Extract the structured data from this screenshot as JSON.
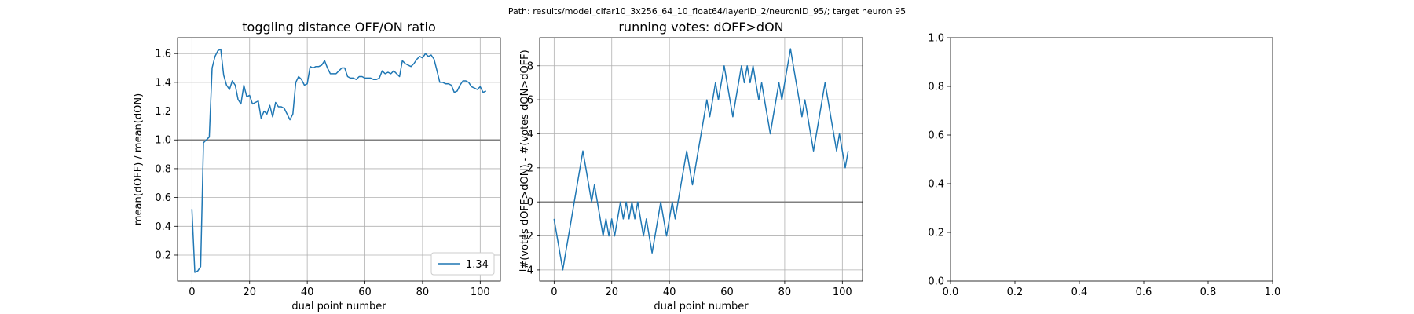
{
  "suptitle": "Path: results/model_cifar10_3x256_64_10_float64/layerID_2/neuronID_95/; target neuron 95",
  "chart_data": [
    {
      "type": "line",
      "title": "toggling distance OFF/ON ratio",
      "xlabel": "dual point number",
      "ylabel": "mean(dOFF) / mean(dON)",
      "xlim": [
        -5,
        107
      ],
      "ylim": [
        0.02,
        1.71
      ],
      "xticks": [
        0,
        20,
        40,
        60,
        80,
        100
      ],
      "yticks": [
        0.2,
        0.4,
        0.6,
        0.8,
        1.0,
        1.2,
        1.4,
        1.6
      ],
      "grid": true,
      "hline": 1.0,
      "legend": {
        "loc": "lower right",
        "entries": [
          "1.34"
        ]
      },
      "series": [
        {
          "name": "1.34",
          "color": "#1f77b4",
          "x": [
            0,
            1,
            2,
            3,
            4,
            5,
            6,
            7,
            8,
            9,
            10,
            11,
            12,
            13,
            14,
            15,
            16,
            17,
            18,
            19,
            20,
            21,
            22,
            23,
            24,
            25,
            26,
            27,
            28,
            29,
            30,
            31,
            32,
            33,
            34,
            35,
            36,
            37,
            38,
            39,
            40,
            41,
            42,
            43,
            44,
            45,
            46,
            47,
            48,
            49,
            50,
            51,
            52,
            53,
            54,
            55,
            56,
            57,
            58,
            59,
            60,
            61,
            62,
            63,
            64,
            65,
            66,
            67,
            68,
            69,
            70,
            71,
            72,
            73,
            74,
            75,
            76,
            77,
            78,
            79,
            80,
            81,
            82,
            83,
            84,
            85,
            86,
            87,
            88,
            89,
            90,
            91,
            92,
            93,
            94,
            95,
            96,
            97,
            98,
            99,
            100,
            101,
            102
          ],
          "y": [
            0.52,
            0.08,
            0.09,
            0.12,
            0.98,
            1.0,
            1.02,
            1.5,
            1.58,
            1.62,
            1.63,
            1.45,
            1.38,
            1.35,
            1.41,
            1.38,
            1.28,
            1.25,
            1.38,
            1.3,
            1.31,
            1.25,
            1.26,
            1.27,
            1.15,
            1.2,
            1.18,
            1.24,
            1.16,
            1.26,
            1.23,
            1.23,
            1.22,
            1.18,
            1.14,
            1.18,
            1.4,
            1.44,
            1.42,
            1.38,
            1.39,
            1.51,
            1.5,
            1.51,
            1.51,
            1.52,
            1.55,
            1.5,
            1.46,
            1.46,
            1.46,
            1.48,
            1.5,
            1.5,
            1.44,
            1.43,
            1.43,
            1.42,
            1.44,
            1.44,
            1.43,
            1.43,
            1.43,
            1.42,
            1.42,
            1.43,
            1.48,
            1.46,
            1.47,
            1.46,
            1.48,
            1.46,
            1.44,
            1.55,
            1.53,
            1.52,
            1.51,
            1.53,
            1.56,
            1.58,
            1.57,
            1.6,
            1.58,
            1.59,
            1.56,
            1.48,
            1.4,
            1.4,
            1.39,
            1.39,
            1.38,
            1.33,
            1.34,
            1.38,
            1.41,
            1.41,
            1.4,
            1.37,
            1.36,
            1.35,
            1.37,
            1.33,
            1.34
          ]
        }
      ]
    },
    {
      "type": "line",
      "title": "running votes: dOFF>dON",
      "xlabel": "dual point number",
      "ylabel": "#(votes dOFF>dON) - #(votes dON>dOFF)",
      "xlim": [
        -5,
        107
      ],
      "ylim": [
        -4.65,
        9.65
      ],
      "xticks": [
        0,
        20,
        40,
        60,
        80,
        100
      ],
      "yticks": [
        -4,
        -2,
        0,
        2,
        4,
        6,
        8
      ],
      "grid": true,
      "hline": 0,
      "series": [
        {
          "color": "#1f77b4",
          "x": [
            0,
            1,
            2,
            3,
            4,
            5,
            6,
            7,
            8,
            9,
            10,
            11,
            12,
            13,
            14,
            15,
            16,
            17,
            18,
            19,
            20,
            21,
            22,
            23,
            24,
            25,
            26,
            27,
            28,
            29,
            30,
            31,
            32,
            33,
            34,
            35,
            36,
            37,
            38,
            39,
            40,
            41,
            42,
            43,
            44,
            45,
            46,
            47,
            48,
            49,
            50,
            51,
            52,
            53,
            54,
            55,
            56,
            57,
            58,
            59,
            60,
            61,
            62,
            63,
            64,
            65,
            66,
            67,
            68,
            69,
            70,
            71,
            72,
            73,
            74,
            75,
            76,
            77,
            78,
            79,
            80,
            81,
            82,
            83,
            84,
            85,
            86,
            87,
            88,
            89,
            90,
            91,
            92,
            93,
            94,
            95,
            96,
            97,
            98,
            99,
            100,
            101,
            102
          ],
          "y": [
            -1,
            -2,
            -3,
            -4,
            -3,
            -2,
            -1,
            0,
            1,
            2,
            3,
            2,
            1,
            0,
            1,
            0,
            -1,
            -2,
            -1,
            -2,
            -1,
            -2,
            -1,
            0,
            -1,
            0,
            -1,
            0,
            -1,
            0,
            -1,
            -2,
            -1,
            -2,
            -3,
            -2,
            -1,
            0,
            -1,
            -2,
            -1,
            0,
            -1,
            0,
            1,
            2,
            3,
            2,
            1,
            2,
            3,
            4,
            5,
            6,
            5,
            6,
            7,
            6,
            7,
            8,
            7,
            6,
            5,
            6,
            7,
            8,
            7,
            8,
            7,
            8,
            7,
            6,
            7,
            6,
            5,
            4,
            5,
            6,
            7,
            6,
            7,
            8,
            9,
            8,
            7,
            6,
            5,
            6,
            5,
            4,
            3,
            4,
            5,
            6,
            7,
            6,
            5,
            4,
            3,
            4,
            3,
            2,
            3
          ]
        }
      ]
    },
    {
      "type": "line",
      "title": "",
      "xlim": [
        0,
        1
      ],
      "ylim": [
        0,
        1
      ],
      "xticks": [
        0.0,
        0.2,
        0.4,
        0.6,
        0.8,
        1.0
      ],
      "yticks": [
        0.0,
        0.2,
        0.4,
        0.6,
        0.8,
        1.0
      ],
      "tick_labels": [
        "0.0",
        "0.2",
        "0.4",
        "0.6",
        "0.8",
        "1.0"
      ],
      "grid": false,
      "series": []
    }
  ]
}
